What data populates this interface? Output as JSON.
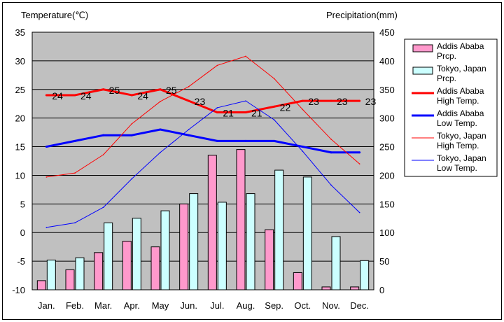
{
  "chart_data": {
    "type": "bar",
    "categories": [
      "Jan.",
      "Feb.",
      "Mar.",
      "Apr.",
      "May",
      "Jun.",
      "Jul.",
      "Aug.",
      "Sep.",
      "Oct.",
      "Nov.",
      "Dec."
    ],
    "left_axis": {
      "label": "Temperature(℃)",
      "ylim": [
        -10,
        35
      ],
      "ticks": [
        -10,
        -5,
        0,
        5,
        10,
        15,
        20,
        25,
        30,
        35
      ]
    },
    "right_axis": {
      "label": "Precipitation(mm)",
      "ylim": [
        0,
        450
      ],
      "ticks": [
        0,
        50,
        100,
        150,
        200,
        250,
        300,
        350,
        400,
        450
      ]
    },
    "grid": true,
    "legend_position": "right",
    "plot_background": "#c0c0c0",
    "series": [
      {
        "name": "Addis Ababa Prcp.",
        "legend_lines": [
          "Addis Ababa",
          "Prcp."
        ],
        "type": "bar",
        "axis": "right",
        "color": "#ff99cc",
        "values": [
          16,
          35,
          65,
          85,
          75,
          150,
          235,
          245,
          105,
          30,
          5,
          5
        ]
      },
      {
        "name": "Tokyo, Japan Prcp.",
        "legend_lines": [
          "Tokyo, Japan",
          "Prcp."
        ],
        "type": "bar",
        "axis": "right",
        "color": "#ccffff",
        "values": [
          52,
          56,
          117,
          125,
          138,
          168,
          153,
          168,
          209,
          197,
          93,
          51
        ]
      },
      {
        "name": "Addis Ababa High Temp.",
        "legend_lines": [
          "Addis Ababa",
          "High Temp."
        ],
        "type": "line",
        "axis": "left",
        "color": "#ff0000",
        "width": 3,
        "values": [
          24,
          24,
          25,
          24,
          25,
          23,
          21,
          21,
          22,
          23,
          23,
          23
        ],
        "data_labels": true
      },
      {
        "name": "Addis Ababa Low Temp.",
        "legend_lines": [
          "Addis Ababa",
          "Low Temp."
        ],
        "type": "line",
        "axis": "left",
        "color": "#0000ff",
        "width": 3,
        "values": [
          15,
          16,
          17,
          17,
          18,
          17,
          16,
          16,
          16,
          15,
          14,
          14
        ]
      },
      {
        "name": "Tokyo, Japan High Temp.",
        "legend_lines": [
          "Tokyo, Japan",
          "High Temp."
        ],
        "type": "line",
        "axis": "left",
        "color": "#ff0000",
        "width": 1,
        "values": [
          9.7,
          10.4,
          13.6,
          19,
          22.9,
          25.5,
          29.2,
          30.8,
          26.9,
          21.5,
          16.3,
          12
        ]
      },
      {
        "name": "Tokyo, Japan Low Temp.",
        "legend_lines": [
          "Tokyo, Japan",
          "Low Temp."
        ],
        "type": "line",
        "axis": "left",
        "color": "#0000ff",
        "width": 1,
        "values": [
          0.9,
          1.7,
          4.4,
          9.4,
          14,
          18,
          21.8,
          23,
          19.7,
          14.2,
          8.3,
          3.5
        ]
      }
    ]
  }
}
